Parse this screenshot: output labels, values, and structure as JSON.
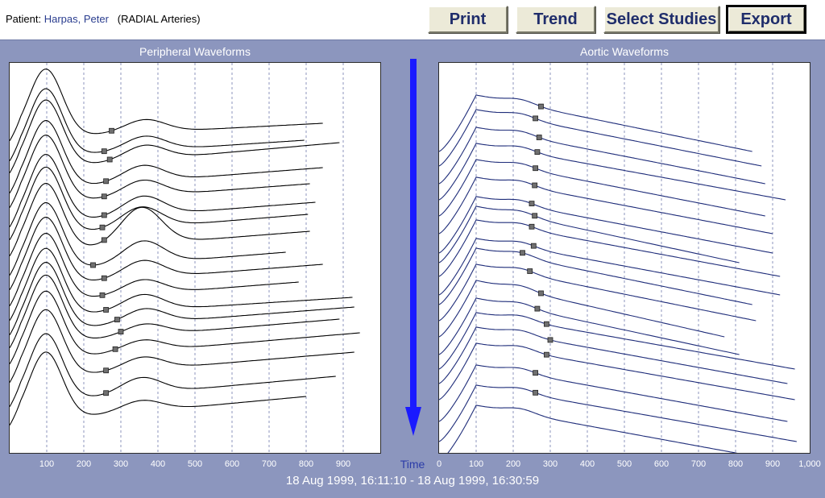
{
  "patient": {
    "label": "Patient:",
    "name": "Harpas, Peter",
    "detail": "(RADIAL Arteries)"
  },
  "toolbar": {
    "buttons": [
      {
        "id": "print",
        "label": "Print"
      },
      {
        "id": "trend",
        "label": "Trend"
      },
      {
        "id": "select_studies",
        "label": "Select Studies"
      },
      {
        "id": "export",
        "label": "Export"
      }
    ]
  },
  "colors": {
    "background": "#8c96be",
    "arrow": "#1a1aff",
    "peripheral_trace": "#000000",
    "aortic_trace": "#1f2d7a",
    "grid": "#8c96be",
    "marker": "#707070"
  },
  "panels": {
    "peripheral": {
      "title": "Peripheral Waveforms",
      "ticks": [
        "100",
        "200",
        "300",
        "400",
        "500",
        "600",
        "700",
        "800",
        "900"
      ]
    },
    "aortic": {
      "title": "Aortic Waveforms",
      "ticks": [
        "0",
        "100",
        "200",
        "300",
        "400",
        "500",
        "600",
        "700",
        "800",
        "900",
        "1,000"
      ]
    }
  },
  "time_label": "Time",
  "date_range": "18 Aug 1999, 16:11:10 - 18 Aug 1999, 16:30:59",
  "chart_data": [
    {
      "type": "line",
      "title": "Peripheral Waveforms",
      "xlim": [
        0,
        1000
      ],
      "x_ticks": [
        100,
        200,
        300,
        400,
        500,
        600,
        700,
        800,
        900
      ],
      "grid": "vertical dashed",
      "series": [
        {
          "t0": 95,
          "peak_ms": 97,
          "amp": 85,
          "notch_ms": 275,
          "notch_dy": 2,
          "peak2_ms": 365,
          "peak2_amp": 16,
          "end_ms": 845,
          "end_dy": -20
        },
        {
          "t0": 120,
          "peak_ms": 97,
          "amp": 85,
          "notch_ms": 255,
          "notch_dy": 2,
          "peak2_ms": 365,
          "peak2_amp": 18,
          "end_ms": 795,
          "end_dy": -24
        },
        {
          "t0": 135,
          "peak_ms": 97,
          "amp": 85,
          "notch_ms": 270,
          "notch_dy": 2,
          "peak2_ms": 365,
          "peak2_amp": 18,
          "end_ms": 890,
          "end_dy": -36
        },
        {
          "t0": 160,
          "peak_ms": 97,
          "amp": 85,
          "notch_ms": 260,
          "notch_dy": 2,
          "peak2_ms": 360,
          "peak2_amp": 20,
          "end_ms": 845,
          "end_dy": -30
        },
        {
          "t0": 178,
          "peak_ms": 97,
          "amp": 85,
          "notch_ms": 255,
          "notch_dy": 2,
          "peak2_ms": 360,
          "peak2_amp": 20,
          "end_ms": 810,
          "end_dy": -28
        },
        {
          "t0": 202,
          "peak_ms": 97,
          "amp": 85,
          "notch_ms": 255,
          "notch_dy": 2,
          "peak2_ms": 360,
          "peak2_amp": 24,
          "end_ms": 825,
          "end_dy": -29
        },
        {
          "t0": 218,
          "peak_ms": 97,
          "amp": 85,
          "notch_ms": 250,
          "notch_dy": 2,
          "peak2_ms": 355,
          "peak2_amp": 26,
          "end_ms": 805,
          "end_dy": -30
        },
        {
          "t0": 238,
          "peak_ms": 97,
          "amp": 85,
          "notch_ms": 255,
          "notch_dy": 2,
          "peak2_ms": 355,
          "peak2_amp": 46,
          "end_ms": 810,
          "end_dy": -29
        },
        {
          "t0": 262,
          "peak_ms": 97,
          "amp": 85,
          "notch_ms": 225,
          "notch_dy": 2,
          "peak2_ms": 360,
          "peak2_amp": 28,
          "end_ms": 745,
          "end_dy": -27
        },
        {
          "t0": 280,
          "peak_ms": 97,
          "amp": 85,
          "notch_ms": 255,
          "notch_dy": 2,
          "peak2_ms": 360,
          "peak2_amp": 22,
          "end_ms": 845,
          "end_dy": -30
        },
        {
          "t0": 300,
          "peak_ms": 97,
          "amp": 85,
          "notch_ms": 250,
          "notch_dy": 2,
          "peak2_ms": 360,
          "peak2_amp": 18,
          "end_ms": 780,
          "end_dy": -28
        },
        {
          "t0": 318,
          "peak_ms": 97,
          "amp": 85,
          "notch_ms": 260,
          "notch_dy": 2,
          "peak2_ms": 360,
          "peak2_amp": 20,
          "end_ms": 925,
          "end_dy": -27
        },
        {
          "t0": 336,
          "peak_ms": 97,
          "amp": 85,
          "notch_ms": 290,
          "notch_dy": 2,
          "peak2_ms": 365,
          "peak2_amp": 18,
          "end_ms": 930,
          "end_dy": -33
        },
        {
          "t0": 352,
          "peak_ms": 97,
          "amp": 85,
          "notch_ms": 300,
          "notch_dy": 2,
          "peak2_ms": 365,
          "peak2_amp": 14,
          "end_ms": 890,
          "end_dy": -34
        },
        {
          "t0": 372,
          "peak_ms": 97,
          "amp": 85,
          "notch_ms": 285,
          "notch_dy": 2,
          "peak2_ms": 360,
          "peak2_amp": 14,
          "end_ms": 945,
          "end_dy": -37
        },
        {
          "t0": 395,
          "peak_ms": 97,
          "amp": 85,
          "notch_ms": 260,
          "notch_dy": 2,
          "peak2_ms": 360,
          "peak2_amp": 16,
          "end_ms": 930,
          "end_dy": -36
        },
        {
          "t0": 425,
          "peak_ms": 97,
          "amp": 85,
          "notch_ms": 260,
          "notch_dy": 2,
          "peak2_ms": 355,
          "peak2_amp": 20,
          "end_ms": 880,
          "end_dy": -36
        },
        {
          "t0": 448,
          "peak_ms": 97,
          "amp": 85,
          "notch_ms": 0,
          "notch_dy": 0,
          "peak2_ms": 355,
          "peak2_amp": 14,
          "end_ms": 800,
          "end_dy": -34
        }
      ]
    },
    {
      "type": "line",
      "title": "Aortic Waveforms",
      "xlim": [
        0,
        1000
      ],
      "x_ticks": [
        0,
        100,
        200,
        300,
        400,
        500,
        600,
        700,
        800,
        900,
        1000
      ],
      "grid": "vertical dashed",
      "series": [
        {
          "t0": 110,
          "peak_ms": 100,
          "amp": 70,
          "notch_ms": 275,
          "notch_dy": 28,
          "end_ms": 845,
          "end_dy": -20
        },
        {
          "t0": 128,
          "peak_ms": 100,
          "amp": 70,
          "notch_ms": 260,
          "notch_dy": 40,
          "end_ms": 870,
          "end_dy": -28
        },
        {
          "t0": 150,
          "peak_ms": 100,
          "amp": 70,
          "notch_ms": 270,
          "notch_dy": 34,
          "end_ms": 880,
          "end_dy": -34
        },
        {
          "t0": 170,
          "peak_ms": 100,
          "amp": 70,
          "notch_ms": 265,
          "notch_dy": 32,
          "end_ms": 935,
          "end_dy": -34
        },
        {
          "t0": 190,
          "peak_ms": 100,
          "amp": 70,
          "notch_ms": 260,
          "notch_dy": 30,
          "end_ms": 880,
          "end_dy": -34
        },
        {
          "t0": 212,
          "peak_ms": 100,
          "amp": 70,
          "notch_ms": 258,
          "notch_dy": 30,
          "end_ms": 900,
          "end_dy": -32
        },
        {
          "t0": 236,
          "peak_ms": 100,
          "amp": 70,
          "notch_ms": 250,
          "notch_dy": 26,
          "end_ms": 900,
          "end_dy": -30
        },
        {
          "t0": 248,
          "peak_ms": 100,
          "amp": 70,
          "notch_ms": 258,
          "notch_dy": 26,
          "end_ms": 810,
          "end_dy": -30
        },
        {
          "t0": 265,
          "peak_ms": 100,
          "amp": 70,
          "notch_ms": 250,
          "notch_dy": 34,
          "end_ms": 920,
          "end_dy": -30
        },
        {
          "t0": 288,
          "peak_ms": 100,
          "amp": 70,
          "notch_ms": 255,
          "notch_dy": 28,
          "end_ms": 920,
          "end_dy": -32
        },
        {
          "t0": 300,
          "peak_ms": 100,
          "amp": 70,
          "notch_ms": 225,
          "notch_dy": 36,
          "end_ms": 845,
          "end_dy": -34
        },
        {
          "t0": 320,
          "peak_ms": 100,
          "amp": 70,
          "notch_ms": 245,
          "notch_dy": 32,
          "end_ms": 855,
          "end_dy": -34
        },
        {
          "t0": 340,
          "peak_ms": 100,
          "amp": 70,
          "notch_ms": 275,
          "notch_dy": 30,
          "end_ms": 770,
          "end_dy": -28
        },
        {
          "t0": 362,
          "peak_ms": 100,
          "amp": 70,
          "notch_ms": 265,
          "notch_dy": 26,
          "end_ms": 810,
          "end_dy": -28
        },
        {
          "t0": 380,
          "peak_ms": 100,
          "amp": 70,
          "notch_ms": 290,
          "notch_dy": 18,
          "end_ms": 960,
          "end_dy": -40
        },
        {
          "t0": 398,
          "peak_ms": 100,
          "amp": 70,
          "notch_ms": 300,
          "notch_dy": 16,
          "end_ms": 940,
          "end_dy": -38
        },
        {
          "t0": 418,
          "peak_ms": 100,
          "amp": 70,
          "notch_ms": 290,
          "notch_dy": 14,
          "end_ms": 960,
          "end_dy": -36
        },
        {
          "t0": 445,
          "peak_ms": 100,
          "amp": 70,
          "notch_ms": 260,
          "notch_dy": 22,
          "end_ms": 940,
          "end_dy": -36
        },
        {
          "t0": 470,
          "peak_ms": 100,
          "amp": 70,
          "notch_ms": 260,
          "notch_dy": 24,
          "end_ms": 965,
          "end_dy": -36
        },
        {
          "t0": 495,
          "peak_ms": 100,
          "amp": 70,
          "notch_ms": 0,
          "notch_dy": 0,
          "end_ms": 930,
          "end_dy": -30
        }
      ]
    }
  ]
}
